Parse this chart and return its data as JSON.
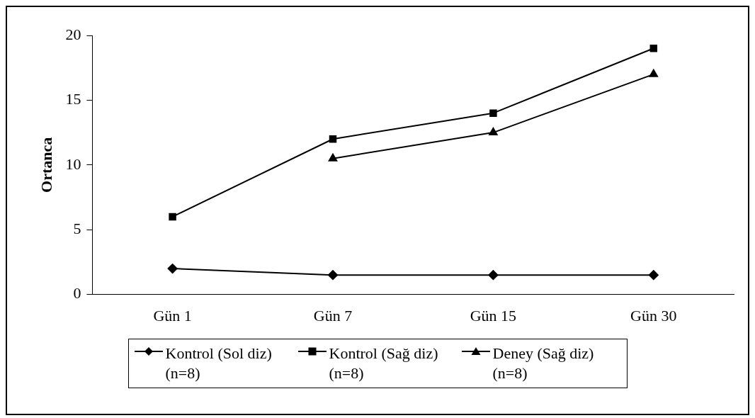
{
  "chart_data": {
    "type": "line",
    "ylabel": "Ortanca",
    "categories": [
      "Gün 1",
      "Gün 7",
      "Gün 15",
      "Gün 30"
    ],
    "series": [
      {
        "name": "Kontrol (Sol diz) (n=8)",
        "color": "#000000",
        "marker": "diamond",
        "values": [
          2,
          1.5,
          1.5,
          1.5
        ]
      },
      {
        "name": "Kontrol (Sağ diz) (n=8)",
        "color": "#000000",
        "marker": "square",
        "values": [
          6,
          12,
          14,
          19
        ]
      },
      {
        "name": "Deney (Sağ diz) (n=8)",
        "color": "#000000",
        "marker": "triangle",
        "values": [
          null,
          10.5,
          12.5,
          17
        ]
      }
    ],
    "ylim": [
      0,
      20
    ],
    "yticks": [
      0,
      5,
      10,
      15,
      20
    ],
    "grid": false,
    "legend": "bottom",
    "line_style": "solid"
  }
}
